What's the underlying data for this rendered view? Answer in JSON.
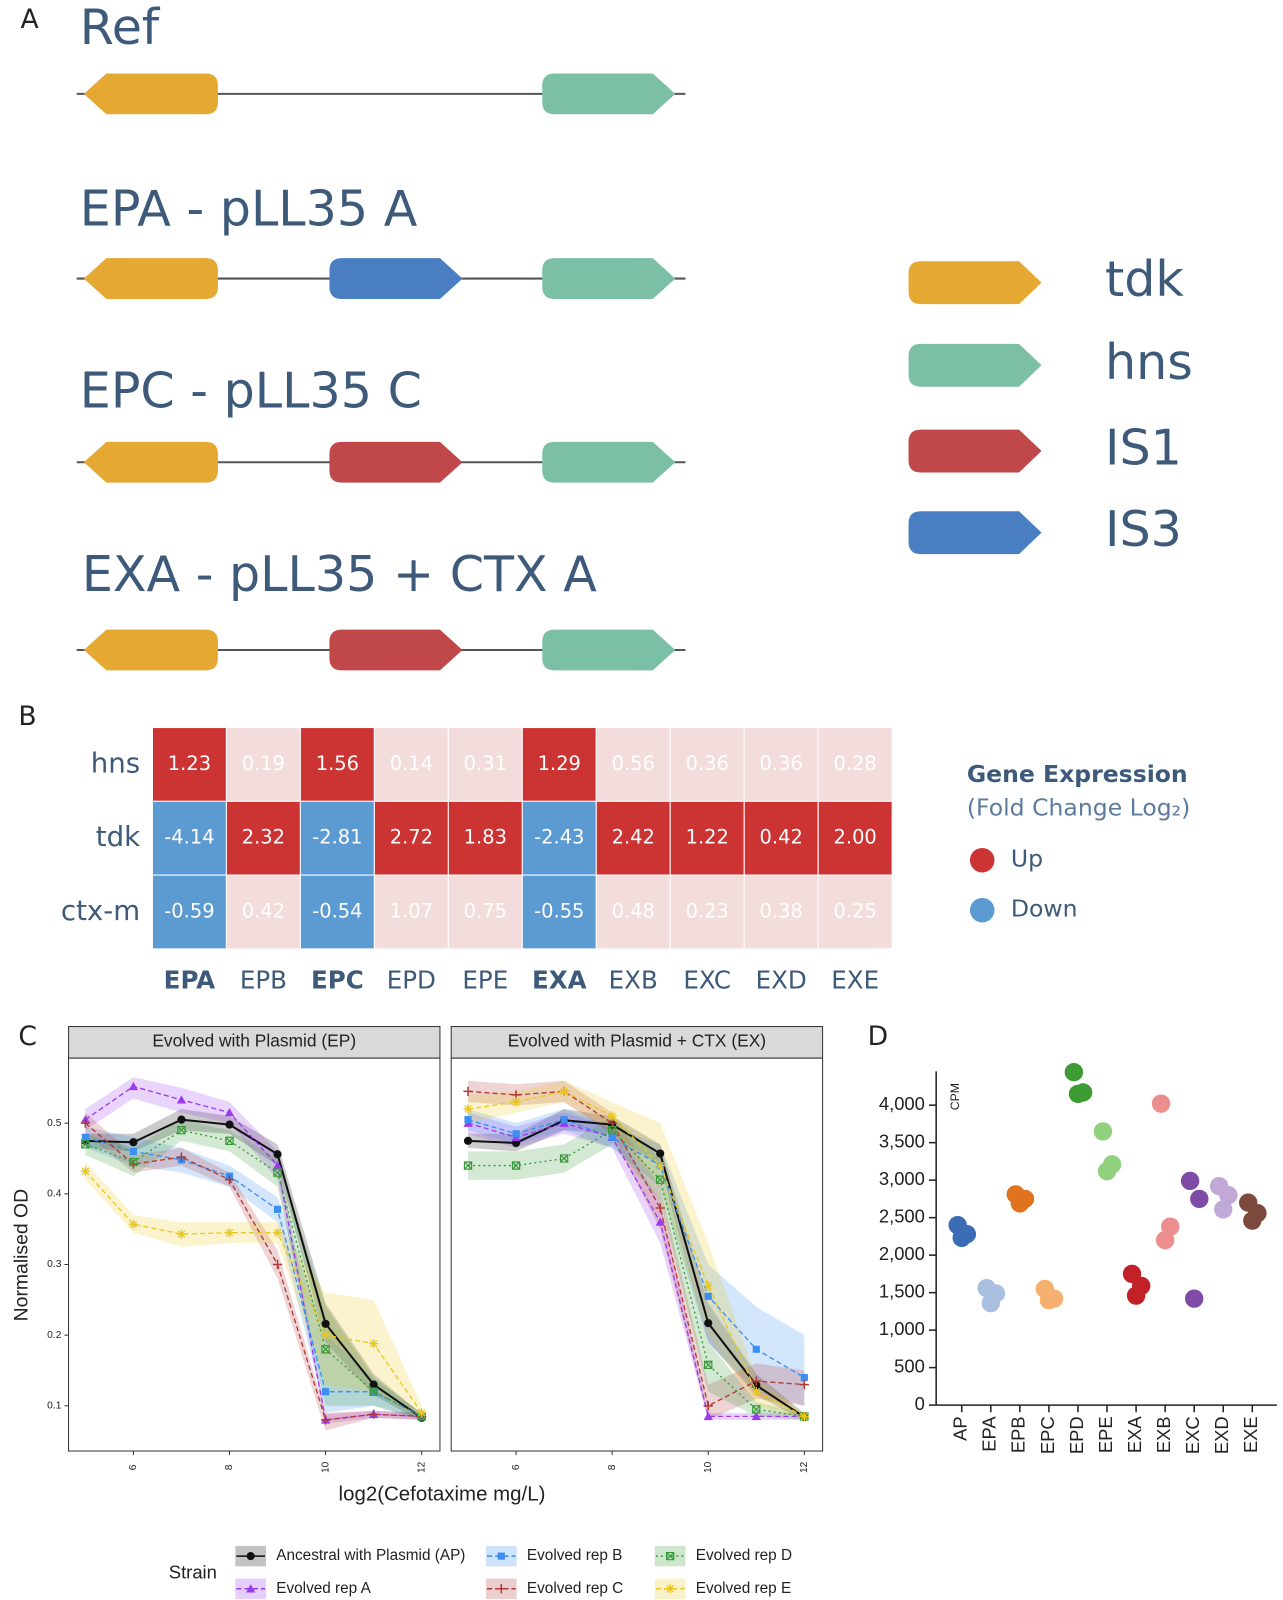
{
  "panels": [
    "A",
    "B",
    "C",
    "D"
  ],
  "diagram": {
    "flanks": [
      {
        "gene": "tdk",
        "direction": "left"
      },
      {
        "gene": "hns",
        "direction": "right"
      }
    ],
    "constructs": [
      {
        "label": "Ref"
      },
      {
        "label": "EPA - pLL35 A",
        "insertion": "IS3"
      },
      {
        "label": "EPC - pLL35 C",
        "insertion": "IS1"
      },
      {
        "label": "EXA - pLL35 + CTX A",
        "insertion": "IS1"
      }
    ],
    "legend": [
      {
        "name": "tdk",
        "color": "#e4a833"
      },
      {
        "name": "hns",
        "color": "#7bbfa4"
      },
      {
        "name": "IS1",
        "color": "#c0474a"
      },
      {
        "name": "IS3",
        "color": "#4a7ec2"
      }
    ]
  },
  "heatmap": {
    "rows": [
      "hns",
      "tdk",
      "ctx-m"
    ],
    "columns": [
      {
        "label": "EPA",
        "bold": true
      },
      {
        "label": "EPB",
        "bold": false
      },
      {
        "label": "EPC",
        "bold": true
      },
      {
        "label": "EPD",
        "bold": false
      },
      {
        "label": "EPE",
        "bold": false
      },
      {
        "label": "EXA",
        "bold": true
      },
      {
        "label": "EXB",
        "bold": false
      },
      {
        "label": "EXC",
        "bold": false
      },
      {
        "label": "EXD",
        "bold": false
      },
      {
        "label": "EXE",
        "bold": false
      }
    ],
    "cells": [
      [
        "1.23",
        "0.19",
        "1.56",
        "0.14",
        "0.31",
        "1.29",
        "0.56",
        "0.36",
        "0.36",
        "0.28"
      ],
      [
        "-4.14",
        "2.32",
        "-2.81",
        "2.72",
        "1.83",
        "-2.43",
        "2.42",
        "1.22",
        "0.42",
        "2.00"
      ],
      [
        "-0.59",
        "0.42",
        "-0.54",
        "1.07",
        "0.75",
        "-0.55",
        "0.48",
        "0.23",
        "0.38",
        "0.25"
      ]
    ],
    "significant": [
      [
        true,
        false,
        true,
        false,
        false,
        true,
        false,
        false,
        false,
        false
      ],
      [
        true,
        true,
        true,
        true,
        true,
        true,
        true,
        true,
        true,
        true
      ],
      [
        true,
        false,
        true,
        false,
        false,
        true,
        false,
        false,
        false,
        false
      ]
    ],
    "legend_title": "Gene Expression",
    "legend_subtitle": "(Fold Change Log₂)",
    "legend": [
      {
        "label": "Up",
        "color": "#cc3333"
      },
      {
        "label": "Down",
        "color": "#5c9bd1"
      }
    ],
    "neutral_color": "#f3dcdc"
  },
  "chart_data": [
    {
      "type": "line",
      "xlabel": "log2(Cefotaxime mg/L)",
      "ylabel": "Normalised OD",
      "legend_title": "Strain",
      "x": [
        5,
        6,
        7,
        8,
        9,
        10,
        11,
        12
      ],
      "xlim": [
        4.65,
        12.38
      ],
      "xticks": [
        6,
        8,
        10,
        12
      ],
      "ylim": [
        0.036,
        0.592
      ],
      "yticks": [
        0.1,
        0.2,
        0.3,
        0.4,
        0.5
      ],
      "series": [
        {
          "name": "Ancestral with Plasmid (AP)",
          "color": "#111111",
          "dash": "solid",
          "marker": "circle"
        },
        {
          "name": "Evolved rep A",
          "color": "#9b3bf0",
          "dash": "dashed",
          "marker": "triangle"
        },
        {
          "name": "Evolved rep B",
          "color": "#3b8ff0",
          "dash": "dashed",
          "marker": "square"
        },
        {
          "name": "Evolved rep C",
          "color": "#b03a3a",
          "dash": "dashed",
          "marker": "plus"
        },
        {
          "name": "Evolved rep D",
          "color": "#3a9a3a",
          "dash": "dotted",
          "marker": "boxx"
        },
        {
          "name": "Evolved rep E",
          "color": "#e8c820",
          "dash": "dashed",
          "marker": "star"
        }
      ],
      "facets": [
        {
          "title": "Evolved with Plasmid (EP)",
          "series": [
            {
              "values": [
                0.475,
                0.473,
                0.505,
                0.498,
                0.456,
                0.216,
                0.13,
                0.083
              ],
              "lower": [
                0.465,
                0.46,
                0.49,
                0.485,
                0.44,
                0.19,
                0.115,
                0.078
              ],
              "upper": [
                0.485,
                0.485,
                0.52,
                0.51,
                0.47,
                0.245,
                0.145,
                0.088
              ]
            },
            {
              "values": [
                0.505,
                0.552,
                0.533,
                0.515,
                0.44,
                0.08,
                0.088,
                0.085
              ],
              "lower": [
                0.49,
                0.535,
                0.515,
                0.5,
                0.42,
                0.075,
                0.083,
                0.08
              ],
              "upper": [
                0.52,
                0.565,
                0.55,
                0.53,
                0.46,
                0.088,
                0.093,
                0.09
              ]
            },
            {
              "values": [
                0.48,
                0.46,
                0.448,
                0.425,
                0.378,
                0.12,
                0.12,
                0.085
              ],
              "lower": [
                0.465,
                0.44,
                0.43,
                0.41,
                0.36,
                0.09,
                0.1,
                0.08
              ],
              "upper": [
                0.495,
                0.48,
                0.465,
                0.44,
                0.395,
                0.2,
                0.14,
                0.09
              ]
            },
            {
              "values": [
                0.5,
                0.442,
                0.452,
                0.42,
                0.3,
                0.08,
                0.088,
                0.085
              ],
              "lower": [
                0.485,
                0.43,
                0.44,
                0.41,
                0.28,
                0.065,
                0.083,
                0.08
              ],
              "upper": [
                0.515,
                0.455,
                0.465,
                0.43,
                0.32,
                0.09,
                0.093,
                0.09
              ]
            },
            {
              "values": [
                0.47,
                0.445,
                0.49,
                0.475,
                0.43,
                0.18,
                0.12,
                0.085
              ],
              "lower": [
                0.455,
                0.425,
                0.475,
                0.46,
                0.41,
                0.1,
                0.1,
                0.08
              ],
              "upper": [
                0.485,
                0.465,
                0.505,
                0.49,
                0.45,
                0.24,
                0.14,
                0.09
              ]
            },
            {
              "values": [
                0.432,
                0.357,
                0.343,
                0.345,
                0.345,
                0.2,
                0.188,
                0.09
              ],
              "lower": [
                0.42,
                0.345,
                0.325,
                0.33,
                0.33,
                0.13,
                0.12,
                0.08
              ],
              "upper": [
                0.445,
                0.37,
                0.36,
                0.36,
                0.36,
                0.26,
                0.25,
                0.1
              ]
            }
          ]
        },
        {
          "title": "Evolved with Plasmid + CTX (EX)",
          "series": [
            {
              "values": [
                0.475,
                0.472,
                0.504,
                0.498,
                0.457,
                0.217,
                0.129,
                0.084
              ],
              "lower": [
                0.465,
                0.46,
                0.49,
                0.485,
                0.44,
                0.19,
                0.115,
                0.079
              ],
              "upper": [
                0.485,
                0.485,
                0.52,
                0.51,
                0.47,
                0.245,
                0.145,
                0.089
              ]
            },
            {
              "values": [
                0.5,
                0.48,
                0.5,
                0.48,
                0.36,
                0.085,
                0.085,
                0.085
              ],
              "lower": [
                0.485,
                0.465,
                0.485,
                0.465,
                0.33,
                0.08,
                0.08,
                0.08
              ],
              "upper": [
                0.515,
                0.495,
                0.515,
                0.495,
                0.39,
                0.09,
                0.09,
                0.09
              ]
            },
            {
              "values": [
                0.505,
                0.485,
                0.505,
                0.48,
                0.44,
                0.255,
                0.18,
                0.14
              ],
              "lower": [
                0.49,
                0.47,
                0.49,
                0.465,
                0.41,
                0.19,
                0.12,
                0.1
              ],
              "upper": [
                0.52,
                0.5,
                0.52,
                0.495,
                0.47,
                0.3,
                0.24,
                0.2
              ]
            },
            {
              "values": [
                0.545,
                0.54,
                0.545,
                0.5,
                0.38,
                0.1,
                0.135,
                0.13
              ],
              "lower": [
                0.53,
                0.525,
                0.53,
                0.485,
                0.35,
                0.08,
                0.11,
                0.1
              ],
              "upper": [
                0.56,
                0.555,
                0.56,
                0.515,
                0.41,
                0.13,
                0.16,
                0.15
              ]
            },
            {
              "values": [
                0.44,
                0.44,
                0.45,
                0.49,
                0.42,
                0.158,
                0.095,
                0.085
              ],
              "lower": [
                0.42,
                0.42,
                0.43,
                0.47,
                0.39,
                0.12,
                0.085,
                0.08
              ],
              "upper": [
                0.46,
                0.46,
                0.47,
                0.51,
                0.45,
                0.19,
                0.105,
                0.09
              ]
            },
            {
              "values": [
                0.52,
                0.53,
                0.545,
                0.51,
                0.44,
                0.27,
                0.12,
                0.085
              ],
              "lower": [
                0.5,
                0.515,
                0.53,
                0.49,
                0.41,
                0.2,
                0.1,
                0.08
              ],
              "upper": [
                0.54,
                0.545,
                0.56,
                0.53,
                0.5,
                0.33,
                0.14,
                0.09
              ]
            }
          ]
        }
      ]
    },
    {
      "type": "strip",
      "ylabel": "CPM",
      "categories": [
        "AP",
        "EPA",
        "EPB",
        "EPC",
        "EPD",
        "EPE",
        "EXA",
        "EXB",
        "EXC",
        "EXD",
        "EXE"
      ],
      "colors": [
        "#3a6db5",
        "#a9bfe0",
        "#e0731f",
        "#f5b070",
        "#3d9b34",
        "#91d17e",
        "#c22127",
        "#ec8e8e",
        "#7e4ba6",
        "#c0a9d6",
        "#7b4a3c"
      ],
      "values": [
        [
          2400,
          2280,
          2230
        ],
        [
          1560,
          1490,
          1360
        ],
        [
          2810,
          2750,
          2690
        ],
        [
          1550,
          1420,
          1400
        ],
        [
          4440,
          4170,
          4150
        ],
        [
          3650,
          3210,
          3120
        ],
        [
          1750,
          1590,
          1460
        ],
        [
          4020,
          2380,
          2200
        ],
        [
          2990,
          2750,
          1420
        ],
        [
          2920,
          2800,
          2610
        ],
        [
          2700,
          2560,
          2460
        ]
      ],
      "ylim": [
        0,
        4450
      ],
      "yticks": [
        0,
        500,
        {
          "value": 1000,
          "label": "1,000"
        },
        {
          "value": 1500,
          "label": "1,500"
        },
        {
          "value": 2000,
          "label": "2,000"
        },
        {
          "value": 2500,
          "label": "2,500"
        },
        {
          "value": 3000,
          "label": "3,000"
        },
        {
          "value": 3500,
          "label": "3,500"
        },
        {
          "value": 4000,
          "label": "4,000"
        }
      ]
    }
  ]
}
